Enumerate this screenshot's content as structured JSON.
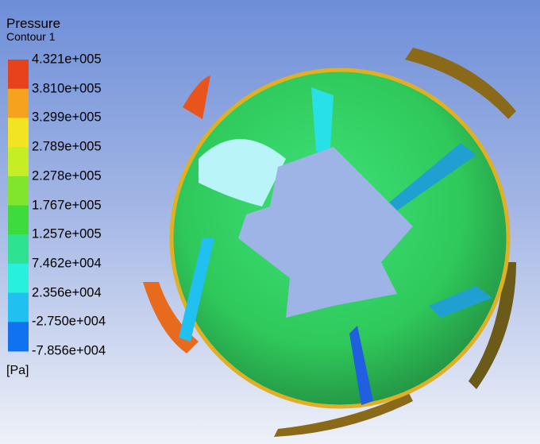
{
  "legend": {
    "title": "Pressure",
    "subtitle": "Contour 1",
    "labels": [
      "4.321e+005",
      "3.810e+005",
      "3.299e+005",
      "2.789e+005",
      "2.278e+005",
      "1.767e+005",
      "1.257e+005",
      "7.462e+004",
      "2.356e+004",
      "-2.750e+004",
      "-7.856e+004"
    ],
    "colors": [
      "#e8421c",
      "#f5a31f",
      "#f2e423",
      "#c5ee25",
      "#80e52c",
      "#3edb3c",
      "#2de392",
      "#27f0dd",
      "#20c1f0",
      "#1172f0"
    ],
    "unit": "[Pa]"
  }
}
